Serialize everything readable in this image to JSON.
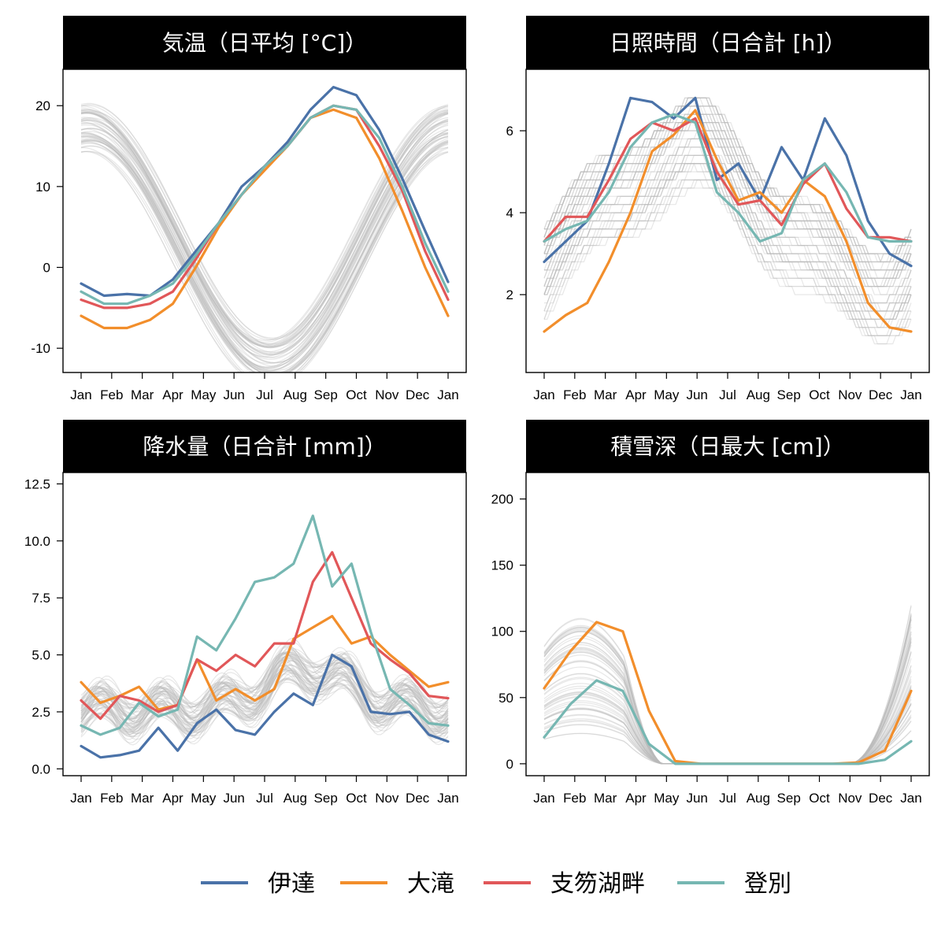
{
  "legend": [
    {
      "name": "伊達",
      "color": "#4a72a8"
    },
    {
      "name": "大滝",
      "color": "#f28e2b"
    },
    {
      "name": "支笏湖畔",
      "color": "#e15759"
    },
    {
      "name": "登別",
      "color": "#76b7b2"
    }
  ],
  "background_color": "#bbbbbb",
  "chart_data": [
    {
      "type": "line",
      "title": "気温（日平均 [°C]）",
      "x_ticks": [
        "Jan",
        "Feb",
        "Mar",
        "Apr",
        "May",
        "Jun",
        "Jul",
        "Aug",
        "Sep",
        "Oct",
        "Nov",
        "Dec",
        "Jan"
      ],
      "y_ticks": [
        "-10",
        "0",
        "10",
        "20"
      ],
      "ylim": [
        -13,
        24.5
      ],
      "series": [
        {
          "name": "伊達",
          "values": [
            -2,
            -3.5,
            -3.3,
            -3.5,
            -1.5,
            2,
            5.5,
            10,
            12.5,
            15.5,
            19.5,
            22.3,
            21.3,
            17,
            11,
            4.5,
            -1.8
          ]
        },
        {
          "name": "大滝",
          "values": [
            -6,
            -7.5,
            -7.5,
            -6.5,
            -4.5,
            0,
            5,
            9,
            12,
            15,
            18.5,
            19.5,
            18.5,
            13.5,
            7,
            0,
            -6
          ]
        },
        {
          "name": "支笏湖畔",
          "values": [
            -4,
            -5,
            -5,
            -4.5,
            -3,
            1,
            5.5,
            9,
            12.5,
            15,
            18.5,
            20,
            19.5,
            15,
            9.5,
            2,
            -4
          ]
        },
        {
          "name": "登別",
          "values": [
            -3,
            -4.5,
            -4.5,
            -3.5,
            -2,
            1.5,
            5.5,
            9,
            12.5,
            15,
            18.5,
            20,
            19.5,
            16,
            10,
            3,
            -3
          ]
        }
      ]
    },
    {
      "type": "line",
      "title": "日照時間（日合計 [h]）",
      "x_ticks": [
        "Jan",
        "Feb",
        "Mar",
        "Apr",
        "May",
        "Jun",
        "Jul",
        "Aug",
        "Sep",
        "Oct",
        "Nov",
        "Dec",
        "Jan"
      ],
      "y_ticks": [
        "2",
        "4",
        "6"
      ],
      "ylim": [
        0.1,
        7.5
      ],
      "series": [
        {
          "name": "伊達",
          "values": [
            2.8,
            3.3,
            3.8,
            5.2,
            6.8,
            6.7,
            6.3,
            6.8,
            4.8,
            5.2,
            4.3,
            5.6,
            4.8,
            6.3,
            5.4,
            3.8,
            3.0,
            2.7
          ]
        },
        {
          "name": "大滝",
          "values": [
            1.1,
            1.5,
            1.8,
            2.8,
            4.0,
            5.5,
            5.9,
            6.5,
            5.3,
            4.3,
            4.5,
            4.0,
            4.8,
            4.4,
            3.3,
            1.8,
            1.2,
            1.1
          ]
        },
        {
          "name": "支笏湖畔",
          "values": [
            3.3,
            3.9,
            3.9,
            4.8,
            5.8,
            6.2,
            6.0,
            6.3,
            5.0,
            4.2,
            4.3,
            3.7,
            4.7,
            5.2,
            4.1,
            3.4,
            3.4,
            3.3
          ]
        },
        {
          "name": "登別",
          "values": [
            3.3,
            3.6,
            3.8,
            4.5,
            5.6,
            6.2,
            6.4,
            6.2,
            4.5,
            4.0,
            3.3,
            3.5,
            4.8,
            5.2,
            4.5,
            3.4,
            3.3,
            3.3
          ]
        }
      ]
    },
    {
      "type": "line",
      "title": "降水量（日合計 [mm]）",
      "x_ticks": [
        "Jan",
        "Feb",
        "Mar",
        "Apr",
        "May",
        "Jun",
        "Jul",
        "Aug",
        "Sep",
        "Oct",
        "Nov",
        "Dec",
        "Jan"
      ],
      "y_ticks": [
        "0.0",
        "2.5",
        "5.0",
        "7.5",
        "10.0",
        "12.5"
      ],
      "ylim": [
        -0.3,
        13
      ],
      "series": [
        {
          "name": "伊達",
          "values": [
            1.0,
            0.5,
            0.6,
            0.8,
            1.8,
            0.8,
            2.0,
            2.6,
            1.7,
            1.5,
            2.5,
            3.3,
            2.8,
            5.0,
            4.5,
            2.5,
            2.4,
            2.5,
            1.5,
            1.2
          ]
        },
        {
          "name": "大滝",
          "values": [
            3.8,
            2.9,
            3.2,
            3.6,
            2.6,
            2.8,
            4.8,
            3.0,
            3.5,
            3.0,
            3.5,
            5.7,
            6.2,
            6.7,
            5.5,
            5.8,
            5.0,
            4.3,
            3.6,
            3.8
          ]
        },
        {
          "name": "支笏湖畔",
          "values": [
            3.0,
            2.2,
            3.2,
            3.0,
            2.5,
            2.8,
            4.8,
            4.3,
            5.0,
            4.5,
            5.5,
            5.5,
            8.2,
            9.5,
            7.5,
            5.5,
            4.8,
            4.2,
            3.2,
            3.1
          ]
        },
        {
          "name": "登別",
          "values": [
            1.9,
            1.5,
            1.8,
            2.9,
            2.3,
            2.6,
            5.8,
            5.2,
            6.6,
            8.2,
            8.4,
            9.0,
            11.1,
            8.0,
            9.0,
            6.0,
            3.5,
            2.8,
            2.0,
            1.9
          ]
        }
      ]
    },
    {
      "type": "line",
      "title": "積雪深（日最大 [cm]）",
      "x_ticks": [
        "Jan",
        "Feb",
        "Mar",
        "Apr",
        "May",
        "Jun",
        "Jul",
        "Aug",
        "Sep",
        "Oct",
        "Nov",
        "Dec",
        "Jan"
      ],
      "y_ticks": [
        "0",
        "50",
        "100",
        "150",
        "200"
      ],
      "ylim": [
        -9,
        220
      ],
      "series": [
        {
          "name": "大滝",
          "values": [
            57,
            85,
            107,
            100,
            40,
            2,
            0,
            0,
            0,
            0,
            0,
            0,
            1,
            10,
            55
          ]
        },
        {
          "name": "登別",
          "values": [
            20,
            45,
            63,
            55,
            15,
            0,
            0,
            0,
            0,
            0,
            0,
            0,
            0,
            3,
            17
          ]
        }
      ]
    }
  ]
}
